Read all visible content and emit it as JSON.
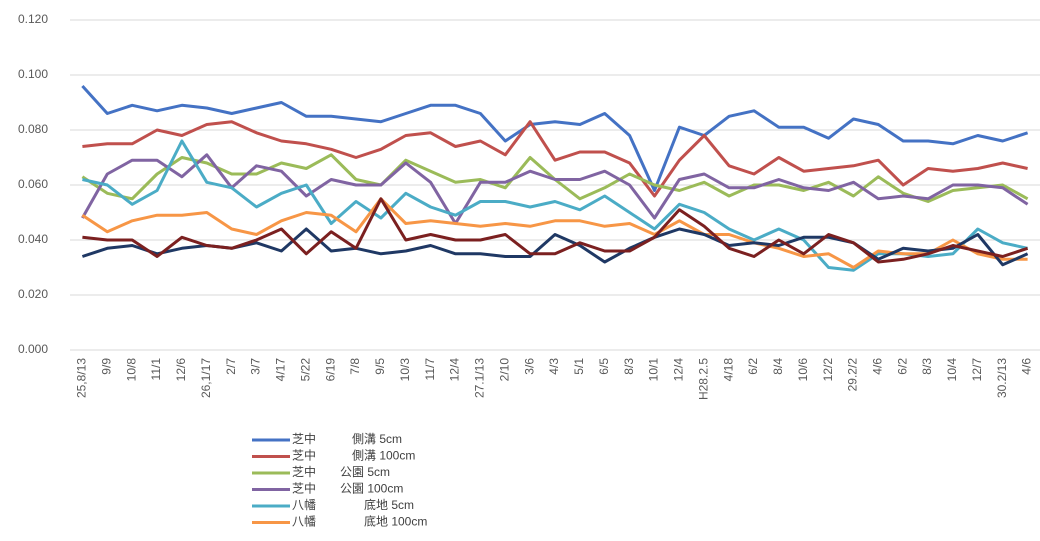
{
  "chart_data": {
    "type": "line",
    "categories": [
      "25,8/13",
      "9/9",
      "10/8",
      "11/1",
      "12/6",
      "26,1/17",
      "2/7",
      "3/7",
      "4/17",
      "5/22",
      "6/19",
      "7/8",
      "9/5",
      "10/3",
      "11/7",
      "12/4",
      "27.1/13",
      "2/10",
      "3/6",
      "4/3",
      "5/1",
      "6/5",
      "8/3",
      "10/1",
      "12/4",
      "H28.2.5",
      "4/18",
      "6/2",
      "8/4",
      "10/6",
      "12/2",
      "29.2/2",
      "4/6",
      "6/2",
      "8/3",
      "10/4",
      "12/7",
      "30.2/13",
      "4/6"
    ],
    "ylim": [
      0,
      0.12
    ],
    "yticks": [
      {
        "value": 0,
        "label": "0.000"
      },
      {
        "value": 0.02,
        "label": "0.020"
      },
      {
        "value": 0.04,
        "label": "0.040"
      },
      {
        "value": 0.06,
        "label": "0.060"
      },
      {
        "value": 0.08,
        "label": "0.080"
      },
      {
        "value": 0.1,
        "label": "0.100"
      },
      {
        "value": 0.12,
        "label": "0.120"
      }
    ],
    "grid": true,
    "series": [
      {
        "name": "芝中　　　側溝 5cm",
        "color": "#4472c4",
        "values": [
          0.096,
          0.086,
          0.089,
          0.087,
          0.089,
          0.088,
          0.086,
          0.088,
          0.09,
          0.085,
          0.085,
          0.084,
          0.083,
          0.086,
          0.089,
          0.089,
          0.086,
          0.076,
          0.082,
          0.083,
          0.082,
          0.086,
          0.078,
          0.058,
          0.081,
          0.078,
          0.085,
          0.087,
          0.081,
          0.081,
          0.077,
          0.084,
          0.082,
          0.076,
          0.076,
          0.075,
          0.078,
          0.076,
          0.079
        ]
      },
      {
        "name": "芝中　　　側溝 100cm",
        "color": "#c0504d",
        "values": [
          0.074,
          0.075,
          0.075,
          0.08,
          0.078,
          0.082,
          0.083,
          0.079,
          0.076,
          0.075,
          0.073,
          0.07,
          0.073,
          0.078,
          0.079,
          0.074,
          0.076,
          0.071,
          0.083,
          0.069,
          0.072,
          0.072,
          0.068,
          0.056,
          0.069,
          0.078,
          0.067,
          0.064,
          0.07,
          0.065,
          0.066,
          0.067,
          0.069,
          0.06,
          0.066,
          0.065,
          0.066,
          0.068,
          0.066
        ]
      },
      {
        "name": "芝中　　公園 5cm",
        "color": "#9bbb59",
        "values": [
          0.063,
          0.057,
          0.055,
          0.064,
          0.07,
          0.068,
          0.064,
          0.064,
          0.068,
          0.066,
          0.071,
          0.062,
          0.06,
          0.069,
          0.065,
          0.061,
          0.062,
          0.059,
          0.07,
          0.062,
          0.055,
          0.059,
          0.064,
          0.06,
          0.058,
          0.061,
          0.056,
          0.06,
          0.06,
          0.058,
          0.061,
          0.056,
          0.063,
          0.057,
          0.054,
          0.058,
          0.059,
          0.06,
          0.055
        ]
      },
      {
        "name": "芝中　　公園 100cm",
        "color": "#8064a2",
        "values": [
          0.048,
          0.064,
          0.069,
          0.069,
          0.063,
          0.071,
          0.059,
          0.067,
          0.065,
          0.056,
          0.062,
          0.06,
          0.06,
          0.068,
          0.061,
          0.046,
          0.061,
          0.061,
          0.065,
          0.062,
          0.062,
          0.065,
          0.06,
          0.048,
          0.062,
          0.064,
          0.059,
          0.059,
          0.062,
          0.059,
          0.058,
          0.061,
          0.055,
          0.056,
          0.055,
          0.06,
          0.06,
          0.059,
          0.053
        ]
      },
      {
        "name": "八幡　　　　底地 5cm",
        "color": "#4bacc6",
        "values": [
          0.062,
          0.06,
          0.053,
          0.058,
          0.076,
          0.061,
          0.059,
          0.052,
          0.057,
          0.06,
          0.046,
          0.054,
          0.048,
          0.057,
          0.052,
          0.049,
          0.054,
          0.054,
          0.052,
          0.054,
          0.051,
          0.056,
          0.05,
          0.044,
          0.053,
          0.05,
          0.044,
          0.04,
          0.044,
          0.04,
          0.03,
          0.029,
          0.035,
          0.035,
          0.034,
          0.035,
          0.044,
          0.039,
          0.037
        ]
      },
      {
        "name": "八幡　　　　底地 100cm",
        "color": "#f79646",
        "values": [
          0.049,
          0.043,
          0.047,
          0.049,
          0.049,
          0.05,
          0.044,
          0.042,
          0.047,
          0.05,
          0.049,
          0.043,
          0.055,
          0.046,
          0.047,
          0.046,
          0.045,
          0.046,
          0.045,
          0.047,
          0.047,
          0.045,
          0.046,
          0.042,
          0.047,
          0.042,
          0.042,
          0.039,
          0.037,
          0.034,
          0.035,
          0.03,
          0.036,
          0.035,
          0.035,
          0.04,
          0.035,
          0.033,
          0.033
        ]
      },
      {
        "color": "#1f3864",
        "values": [
          0.034,
          0.037,
          0.038,
          0.035,
          0.037,
          0.038,
          0.037,
          0.039,
          0.036,
          0.044,
          0.036,
          0.037,
          0.035,
          0.036,
          0.038,
          0.035,
          0.035,
          0.034,
          0.034,
          0.042,
          0.038,
          0.032,
          0.037,
          0.041,
          0.044,
          0.042,
          0.038,
          0.039,
          0.038,
          0.041,
          0.041,
          0.039,
          0.033,
          0.037,
          0.036,
          0.037,
          0.042,
          0.031,
          0.035
        ]
      },
      {
        "color": "#7b2020",
        "values": [
          0.041,
          0.04,
          0.04,
          0.034,
          0.041,
          0.038,
          0.037,
          0.04,
          0.044,
          0.035,
          0.043,
          0.037,
          0.055,
          0.04,
          0.042,
          0.04,
          0.04,
          0.042,
          0.035,
          0.035,
          0.039,
          0.036,
          0.036,
          0.041,
          0.051,
          0.045,
          0.037,
          0.034,
          0.04,
          0.035,
          0.042,
          0.039,
          0.032,
          0.033,
          0.035,
          0.038,
          0.036,
          0.034,
          0.037
        ]
      }
    ]
  }
}
